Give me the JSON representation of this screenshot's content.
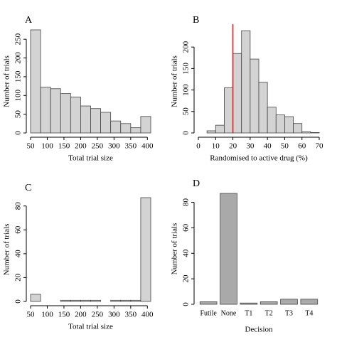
{
  "chart_data": [
    {
      "type": "histogram",
      "title": "A",
      "xlabel": "Total trial size",
      "ylabel": "Number of trials",
      "bins": [
        50,
        80,
        110,
        140,
        170,
        200,
        230,
        260,
        290,
        320,
        350,
        380,
        410
      ],
      "values": [
        275,
        122,
        118,
        105,
        96,
        72,
        65,
        55,
        32,
        25,
        14,
        44
      ],
      "color": "#d3d3d3",
      "xlim": [
        50,
        410
      ],
      "ylim": [
        0,
        275
      ],
      "xticks": [
        50,
        100,
        150,
        200,
        250,
        300,
        350,
        400
      ],
      "yticks": [
        0,
        50,
        100,
        150,
        200,
        250
      ]
    },
    {
      "type": "histogram",
      "title": "B",
      "xlabel": "Randomised to active drug (%)",
      "ylabel": "Number of trials",
      "bins": [
        0,
        5,
        10,
        15,
        20,
        25,
        30,
        35,
        40,
        45,
        50,
        55,
        60,
        65,
        70
      ],
      "values": [
        0,
        5,
        18,
        105,
        185,
        238,
        172,
        118,
        60,
        42,
        38,
        22,
        3,
        1
      ],
      "color": "#d3d3d3",
      "xlim": [
        0,
        70
      ],
      "ylim": [
        0,
        240
      ],
      "xticks": [
        0,
        10,
        20,
        30,
        40,
        50,
        60,
        70
      ],
      "yticks": [
        0,
        50,
        100,
        150,
        200
      ],
      "vline": 20,
      "vline_color": "#e02020"
    },
    {
      "type": "histogram",
      "title": "C",
      "xlabel": "Total trial size",
      "ylabel": "Number of trials",
      "bins": [
        50,
        80,
        110,
        140,
        170,
        200,
        230,
        260,
        290,
        320,
        350,
        380,
        410
      ],
      "values": [
        6,
        0,
        0,
        1,
        1,
        1,
        1,
        0,
        1,
        1,
        1,
        87
      ],
      "color": "#d3d3d3",
      "xlim": [
        50,
        410
      ],
      "ylim": [
        0,
        87
      ],
      "xticks": [
        50,
        100,
        150,
        200,
        250,
        300,
        350,
        400
      ],
      "yticks": [
        0,
        20,
        40,
        60,
        80
      ]
    },
    {
      "type": "bar",
      "title": "D",
      "xlabel": "Decision",
      "ylabel": "Number of trials",
      "categories": [
        "Futile",
        "None",
        "T1",
        "T2",
        "T3",
        "T4"
      ],
      "values": [
        2,
        87,
        1,
        2,
        4,
        4
      ],
      "color": "#a9a9a9",
      "ylim": [
        0,
        87
      ],
      "yticks": [
        0,
        20,
        40,
        60,
        80
      ]
    }
  ]
}
